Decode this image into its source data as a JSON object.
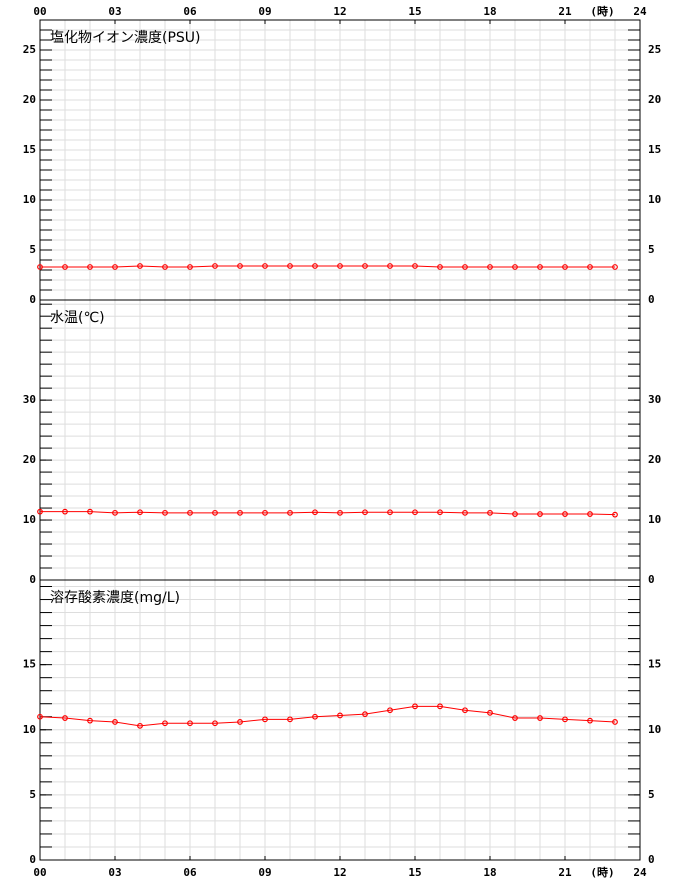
{
  "chart_data": [
    {
      "type": "line",
      "title": "塩化物イオン濃度(PSU)",
      "x": [
        0,
        1,
        2,
        3,
        4,
        5,
        6,
        7,
        8,
        9,
        10,
        11,
        12,
        13,
        14,
        15,
        16,
        17,
        18,
        19,
        20,
        21,
        22,
        23
      ],
      "series": [
        {
          "color": "#ff0000",
          "values": [
            3.3,
            3.3,
            3.3,
            3.3,
            3.4,
            3.3,
            3.3,
            3.4,
            3.4,
            3.4,
            3.4,
            3.4,
            3.4,
            3.4,
            3.4,
            3.4,
            3.3,
            3.3,
            3.3,
            3.3,
            3.3,
            3.3,
            3.3,
            3.3
          ]
        }
      ],
      "ylim": [
        0,
        28
      ],
      "yticks": [
        0,
        5,
        10,
        15,
        20,
        25
      ],
      "minor_step": 1,
      "xlim": [
        0,
        24
      ],
      "xaxis": "top",
      "x_unit": "(時)",
      "xticks": [
        {
          "value": 0,
          "label": "00"
        },
        {
          "value": 3,
          "label": "03"
        },
        {
          "value": 6,
          "label": "06"
        },
        {
          "value": 9,
          "label": "09"
        },
        12,
        15,
        18,
        21,
        24
      ],
      "grid": true
    },
    {
      "type": "line",
      "title": "水温(℃)",
      "x": [
        0,
        1,
        2,
        3,
        4,
        5,
        6,
        7,
        8,
        9,
        10,
        11,
        12,
        13,
        14,
        15,
        16,
        17,
        18,
        19,
        20,
        21,
        22,
        23
      ],
      "series": [
        {
          "color": "#ff0000",
          "values": [
            11.4,
            11.4,
            11.4,
            11.2,
            11.3,
            11.2,
            11.2,
            11.2,
            11.2,
            11.2,
            11.2,
            11.3,
            11.2,
            11.3,
            11.3,
            11.3,
            11.3,
            11.2,
            11.2,
            11.0,
            11.0,
            11.0,
            11.0,
            10.9
          ]
        }
      ],
      "ylim": [
        0,
        46.7
      ],
      "yticks": [
        0,
        10,
        20,
        30
      ],
      "minor_step": 2,
      "grid": true
    },
    {
      "type": "line",
      "title": "溶存酸素濃度(mg/L)",
      "x": [
        0,
        1,
        2,
        3,
        4,
        5,
        6,
        7,
        8,
        9,
        10,
        11,
        12,
        13,
        14,
        15,
        16,
        17,
        18,
        19,
        20,
        21,
        22,
        23
      ],
      "series": [
        {
          "color": "#ff0000",
          "values": [
            11.0,
            10.9,
            10.7,
            10.6,
            10.3,
            10.5,
            10.5,
            10.5,
            10.6,
            10.8,
            10.8,
            11.0,
            11.1,
            11.2,
            11.5,
            11.8,
            11.8,
            11.5,
            11.3,
            10.9,
            10.9,
            10.8,
            10.7,
            10.6
          ]
        }
      ],
      "ylim": [
        0,
        21.5
      ],
      "yticks": [
        0,
        5,
        10,
        15
      ],
      "minor_step": 1,
      "xlim": [
        0,
        24
      ],
      "xaxis": "bottom",
      "x_unit": "(時)",
      "xticks": [
        {
          "value": 0,
          "label": "00"
        },
        {
          "value": 3,
          "label": "03"
        },
        {
          "value": 6,
          "label": "06"
        },
        {
          "value": 9,
          "label": "09"
        },
        12,
        15,
        18,
        21,
        24
      ],
      "grid": true
    }
  ]
}
